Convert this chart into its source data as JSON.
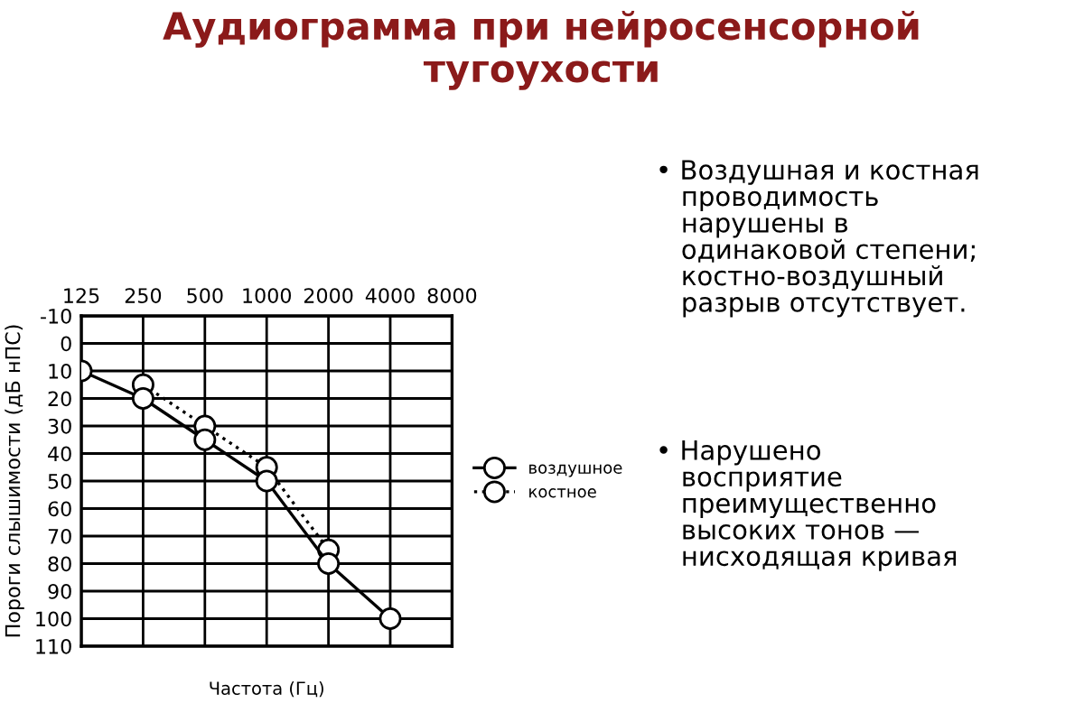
{
  "chart_data": {
    "type": "line",
    "title": "Аудиограмма при нейросенсорной\nтугоухости",
    "xlabel": "Частота (Гц)",
    "ylabel": "Пороги слышимости (дБ нПС)",
    "categories": [
      "125",
      "250",
      "500",
      "1000",
      "2000",
      "4000",
      "8000"
    ],
    "series": [
      {
        "name": "воздушное",
        "color": "#000000",
        "line_style": "solid",
        "values": [
          10,
          20,
          35,
          50,
          80,
          100,
          null
        ]
      },
      {
        "name": "костное",
        "color": "#000000",
        "line_style": "dotted",
        "values": [
          null,
          15,
          30,
          45,
          75,
          null,
          null
        ]
      }
    ],
    "ylim": [
      110,
      -10
    ],
    "yticks": [
      -10,
      0,
      10,
      20,
      30,
      40,
      50,
      60,
      70,
      80,
      90,
      100,
      110
    ],
    "grid": true,
    "legend": "right",
    "marker": "circle",
    "annotations": [
      "• Воздушная и костная\n   проводимость\n   нарушены в\n   одинаковой степени;\n   костно-воздушный\n   разрыв отсутствует.",
      "• Нарушено\n   восприятие\n   преимущественно\n   высоких тонов —\n   нисходящая кривая"
    ]
  }
}
